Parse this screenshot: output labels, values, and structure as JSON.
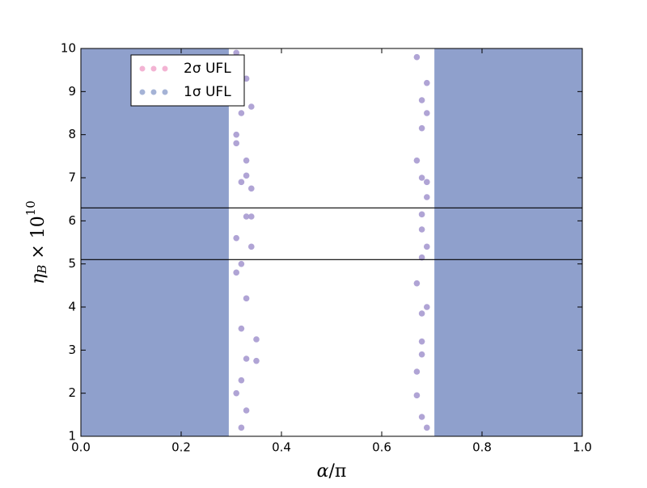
{
  "chart_data": {
    "type": "scatter",
    "xlabel": {
      "a": "α",
      "b": "/π"
    },
    "ylabel": {
      "base": "η",
      "sub": "B",
      "mid": " × 10",
      "sup": "10"
    },
    "xlim": [
      0,
      1
    ],
    "ylim": [
      1,
      10
    ],
    "xticks": [
      {
        "value": 0,
        "label": "0.0"
      },
      {
        "value": 0.2,
        "label": "0.2"
      },
      {
        "value": 0.4,
        "label": "0.4"
      },
      {
        "value": 0.6,
        "label": "0.6"
      },
      {
        "value": 0.8,
        "label": "0.8"
      },
      {
        "value": 1,
        "label": "1.0"
      }
    ],
    "yticks": [
      1,
      2,
      3,
      4,
      5,
      6,
      7,
      8,
      9,
      10
    ],
    "hlines": [
      5.1,
      6.3
    ],
    "legend": "upper left",
    "series": [
      {
        "name": "2σ UFL",
        "color": "#f0a0c8",
        "x": [
          0.31,
          0.33,
          0.34,
          0.32,
          0.33,
          0.33,
          0.34,
          0.34,
          0.33,
          0.34,
          0.32,
          0.33,
          0.35,
          0.35,
          0.33,
          0.32,
          0.33,
          0.32,
          0.31,
          0.31,
          0.31,
          0.32,
          0.31,
          0.32,
          0.31,
          0.67,
          0.69,
          0.68,
          0.68,
          0.67,
          0.68,
          0.69,
          0.68,
          0.68,
          0.68,
          0.67,
          0.68,
          0.68,
          0.67,
          0.67,
          0.68,
          0.69,
          0.69,
          0.69,
          0.68,
          0.69,
          0.69
        ],
        "y": [
          9.9,
          9.3,
          8.65,
          8.5,
          7.4,
          7.05,
          6.75,
          6.1,
          6.1,
          5.4,
          5.0,
          4.2,
          3.25,
          2.75,
          2.8,
          2.3,
          1.6,
          1.2,
          4.8,
          8.0,
          7.8,
          3.5,
          2.0,
          6.9,
          5.6,
          9.8,
          9.2,
          8.8,
          8.15,
          7.4,
          7.0,
          6.55,
          6.15,
          5.8,
          5.15,
          4.55,
          3.85,
          3.2,
          2.5,
          1.95,
          1.45,
          4.0,
          8.5,
          6.9,
          2.9,
          5.4,
          1.2
        ]
      },
      {
        "name": "1σ UFL",
        "color": "#8fa0cc",
        "x_ranges": [
          [
            0,
            0.295
          ],
          [
            0.705,
            1
          ]
        ]
      }
    ]
  }
}
